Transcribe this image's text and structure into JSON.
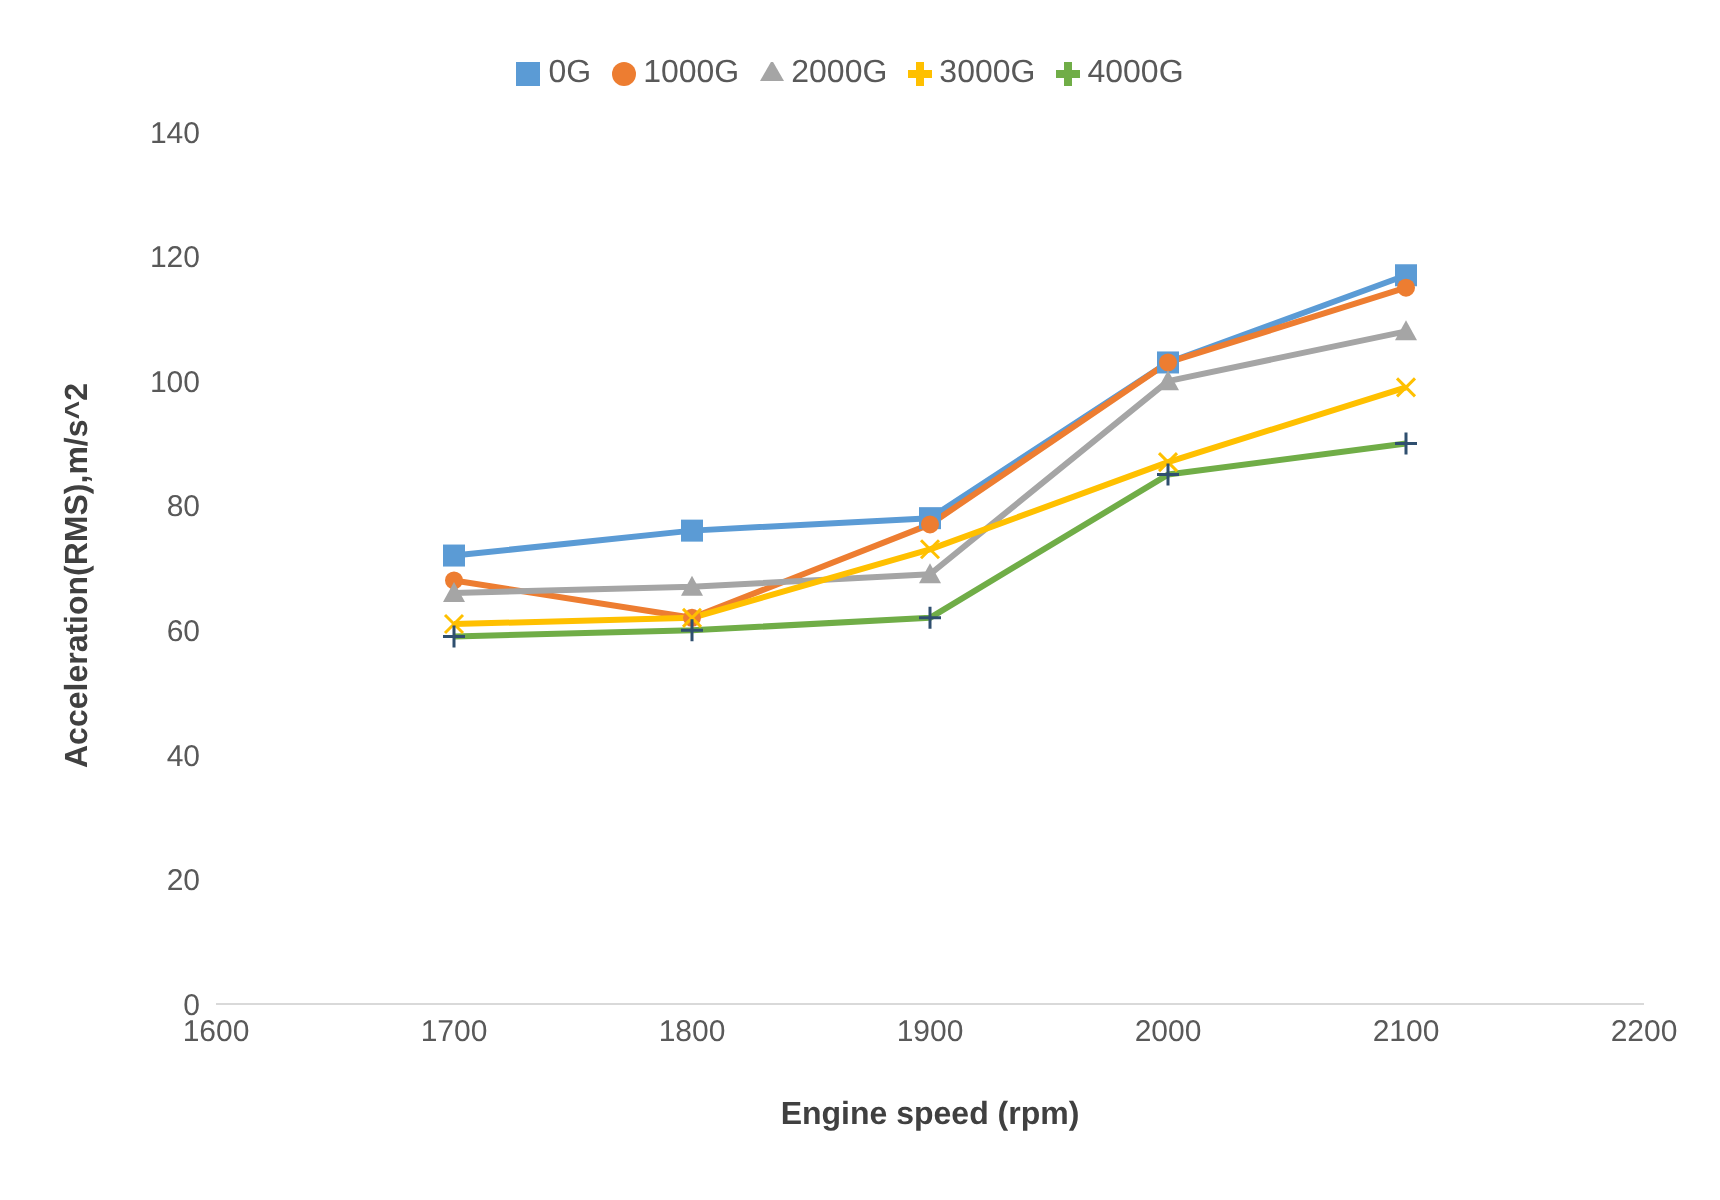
{
  "chart_data": {
    "type": "line",
    "xlabel": "Engine speed (rpm)",
    "ylabel": "Acceleration(RMS),m/s^2",
    "x": [
      1700,
      1800,
      1900,
      2000,
      2100
    ],
    "series": [
      {
        "name": "0G",
        "color": "#5b9bd5",
        "marker": "square",
        "values": [
          72,
          76,
          78,
          103,
          117
        ]
      },
      {
        "name": "1000G",
        "color": "#ed7d31",
        "marker": "circle",
        "values": [
          68,
          62,
          77,
          103,
          115
        ]
      },
      {
        "name": "2000G",
        "color": "#a5a5a5",
        "marker": "triangle",
        "values": [
          66,
          67,
          69,
          100,
          108
        ]
      },
      {
        "name": "3000G",
        "color": "#ffc000",
        "marker": "cross",
        "values": [
          61,
          62,
          73,
          87,
          99
        ]
      },
      {
        "name": "4000G",
        "color": "#70ad47",
        "marker": "plus",
        "values": [
          59,
          60,
          62,
          85,
          90
        ]
      }
    ],
    "xlim": [
      1600,
      2200
    ],
    "xticks": [
      1600,
      1700,
      1800,
      1900,
      2000,
      2100,
      2200
    ],
    "ylim": [
      0,
      140
    ],
    "yticks": [
      0,
      20,
      40,
      60,
      80,
      100,
      120,
      140
    ],
    "grid": false,
    "legend": "top"
  }
}
